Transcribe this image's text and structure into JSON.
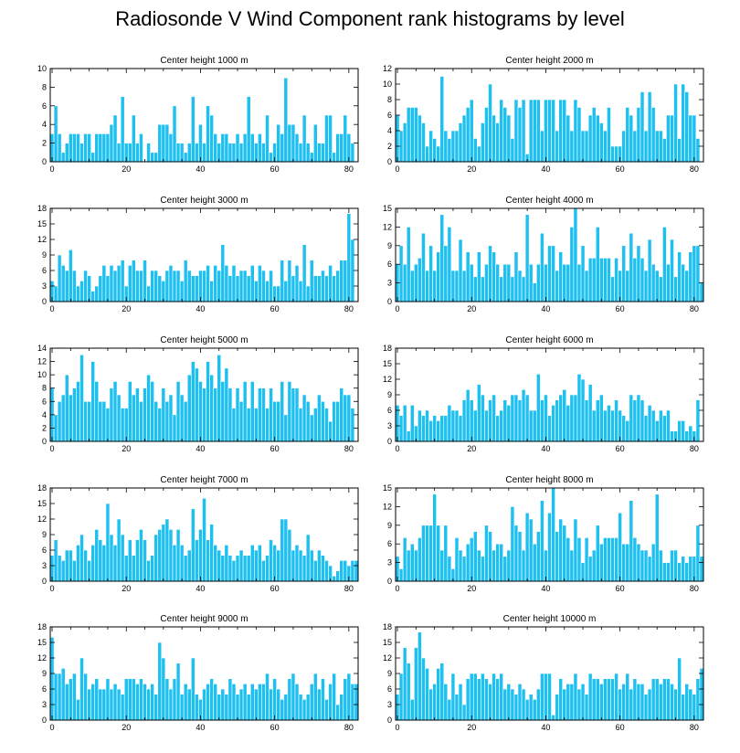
{
  "title": "Radiosonde V Wind Component rank histograms by level",
  "colors": {
    "bar": "#1ec0f0",
    "bar_edge": "#ffffff",
    "axis": "#000000"
  },
  "chart_data": [
    {
      "type": "bar",
      "title": "Center height 1000 m",
      "xlim": [
        -0.5,
        82.5
      ],
      "ylim": [
        0,
        10
      ],
      "xticks": [
        0,
        20,
        40,
        60,
        80
      ],
      "yticks": [
        0,
        2,
        4,
        6,
        8,
        10
      ],
      "values": [
        3,
        6,
        3,
        1,
        2,
        3,
        3,
        3,
        2,
        3,
        3,
        1,
        3,
        3,
        3,
        3,
        4,
        5,
        2,
        7,
        2,
        2,
        5,
        2,
        3,
        0,
        2,
        1,
        1,
        4,
        4,
        4,
        3,
        6,
        2,
        2,
        1,
        2,
        7,
        2,
        4,
        2,
        6,
        5,
        3,
        2,
        3,
        3,
        2,
        2,
        3,
        2,
        3,
        7,
        3,
        2,
        3,
        2,
        5,
        1,
        2,
        4,
        3,
        9,
        4,
        4,
        3,
        2,
        5,
        2,
        1,
        4,
        2,
        2,
        5,
        5,
        1,
        3,
        3,
        5,
        3,
        2,
        0
      ]
    },
    {
      "type": "bar",
      "title": "Center height 2000 m",
      "xlim": [
        -0.5,
        82.5
      ],
      "ylim": [
        0,
        12
      ],
      "xticks": [
        0,
        20,
        40,
        60,
        80
      ],
      "yticks": [
        0,
        2,
        4,
        6,
        8,
        10,
        12
      ],
      "values": [
        6,
        4,
        5,
        7,
        7,
        7,
        6,
        5,
        2,
        4,
        3,
        2,
        11,
        4,
        3,
        4,
        4,
        5,
        6,
        7,
        8,
        3,
        2,
        5,
        7,
        10,
        6,
        5,
        8,
        7,
        6,
        3,
        8,
        7,
        8,
        1,
        8,
        8,
        8,
        4,
        8,
        8,
        8,
        4,
        8,
        8,
        6,
        4,
        8,
        7,
        4,
        4,
        6,
        7,
        6,
        5,
        4,
        7,
        2,
        2,
        2,
        4,
        7,
        6,
        4,
        7,
        9,
        4,
        9,
        7,
        4,
        4,
        3,
        6,
        6,
        10,
        3,
        10,
        9,
        6,
        6,
        3,
        0
      ]
    },
    {
      "type": "bar",
      "title": "Center height 3000 m",
      "xlim": [
        -0.5,
        82.5
      ],
      "ylim": [
        0,
        18
      ],
      "xticks": [
        0,
        20,
        40,
        60,
        80
      ],
      "yticks": [
        0,
        3,
        6,
        9,
        12,
        15,
        18
      ],
      "values": [
        4,
        3,
        9,
        7,
        6,
        10,
        6,
        3,
        4,
        6,
        5,
        2,
        3,
        5,
        7,
        5,
        7,
        6,
        7,
        8,
        3,
        7,
        8,
        6,
        6,
        8,
        3,
        6,
        6,
        5,
        4,
        6,
        7,
        6,
        6,
        4,
        8,
        6,
        5,
        5,
        6,
        6,
        7,
        4,
        7,
        6,
        11,
        7,
        5,
        7,
        5,
        6,
        6,
        5,
        7,
        4,
        7,
        6,
        4,
        6,
        3,
        3,
        8,
        4,
        8,
        5,
        7,
        4,
        11,
        3,
        8,
        5,
        5,
        6,
        5,
        7,
        5,
        6,
        8,
        8,
        17,
        12,
        0
      ]
    },
    {
      "type": "bar",
      "title": "Center height 4000 m",
      "xlim": [
        -0.5,
        82.5
      ],
      "ylim": [
        0,
        15
      ],
      "xticks": [
        0,
        20,
        40,
        60,
        80
      ],
      "yticks": [
        0,
        3,
        6,
        9,
        12,
        15
      ],
      "values": [
        6,
        9,
        6,
        12,
        5,
        6,
        7,
        11,
        5,
        9,
        5,
        8,
        14,
        9,
        12,
        5,
        5,
        10,
        5,
        8,
        6,
        4,
        8,
        4,
        6,
        9,
        8,
        6,
        4,
        6,
        6,
        4,
        8,
        5,
        4,
        14,
        6,
        3,
        6,
        11,
        6,
        9,
        9,
        5,
        8,
        6,
        6,
        12,
        15,
        6,
        9,
        5,
        7,
        7,
        12,
        7,
        7,
        7,
        4,
        7,
        5,
        9,
        5,
        11,
        7,
        9,
        7,
        5,
        10,
        6,
        5,
        4,
        12,
        6,
        10,
        4,
        8,
        6,
        5,
        8,
        9,
        9,
        3
      ]
    },
    {
      "type": "bar",
      "title": "Center height 5000 m",
      "xlim": [
        -0.5,
        82.5
      ],
      "ylim": [
        0,
        14
      ],
      "xticks": [
        0,
        20,
        40,
        60,
        80
      ],
      "yticks": [
        0,
        2,
        4,
        6,
        8,
        10,
        12,
        14
      ],
      "values": [
        8,
        4,
        6,
        7,
        10,
        7,
        8,
        9,
        13,
        6,
        6,
        12,
        9,
        6,
        6,
        5,
        8,
        9,
        7,
        5,
        5,
        9,
        7,
        8,
        6,
        8,
        10,
        9,
        6,
        5,
        8,
        6,
        7,
        4,
        9,
        7,
        6,
        10,
        12,
        11,
        9,
        8,
        12,
        10,
        8,
        13,
        9,
        11,
        8,
        5,
        8,
        6,
        9,
        5,
        9,
        5,
        8,
        8,
        5,
        8,
        6,
        6,
        9,
        4,
        9,
        8,
        8,
        5,
        7,
        6,
        4,
        5,
        7,
        6,
        5,
        3,
        6,
        6,
        8,
        7,
        7,
        5,
        0
      ]
    },
    {
      "type": "bar",
      "title": "Center height 6000 m",
      "xlim": [
        -0.5,
        82.5
      ],
      "ylim": [
        0,
        18
      ],
      "xticks": [
        0,
        20,
        40,
        60,
        80
      ],
      "yticks": [
        0,
        3,
        6,
        9,
        12,
        15,
        18
      ],
      "values": [
        7,
        5,
        7,
        2,
        7,
        3,
        6,
        5,
        6,
        4,
        5,
        4,
        5,
        5,
        7,
        6,
        6,
        5,
        8,
        10,
        8,
        6,
        11,
        9,
        6,
        8,
        9,
        5,
        6,
        8,
        7,
        9,
        9,
        8,
        10,
        9,
        6,
        6,
        13,
        8,
        9,
        5,
        7,
        8,
        9,
        10,
        7,
        9,
        9,
        13,
        12,
        8,
        11,
        6,
        8,
        9,
        6,
        7,
        6,
        8,
        6,
        5,
        4,
        9,
        8,
        9,
        8,
        5,
        7,
        6,
        4,
        6,
        5,
        6,
        2,
        2,
        4,
        4,
        2,
        3,
        2,
        8,
        0
      ]
    },
    {
      "type": "bar",
      "title": "Center height 7000 m",
      "xlim": [
        -0.5,
        82.5
      ],
      "ylim": [
        0,
        18
      ],
      "xticks": [
        0,
        20,
        40,
        60,
        80
      ],
      "yticks": [
        0,
        3,
        6,
        9,
        12,
        15,
        18
      ],
      "values": [
        5,
        8,
        5,
        4,
        6,
        6,
        4,
        7,
        9,
        6,
        4,
        7,
        10,
        8,
        7,
        15,
        9,
        7,
        12,
        9,
        5,
        8,
        5,
        8,
        10,
        8,
        4,
        5,
        9,
        10,
        11,
        12,
        10,
        7,
        10,
        7,
        5,
        6,
        14,
        8,
        10,
        16,
        8,
        11,
        7,
        6,
        5,
        7,
        5,
        4,
        5,
        6,
        5,
        5,
        7,
        6,
        7,
        4,
        5,
        8,
        7,
        6,
        12,
        12,
        10,
        6,
        7,
        6,
        5,
        9,
        6,
        4,
        6,
        5,
        4,
        3,
        1,
        2,
        4,
        4,
        3,
        4,
        4
      ]
    },
    {
      "type": "bar",
      "title": "Center height 8000 m",
      "xlim": [
        -0.5,
        82.5
      ],
      "ylim": [
        0,
        15
      ],
      "xticks": [
        0,
        20,
        40,
        60,
        80
      ],
      "yticks": [
        0,
        3,
        6,
        9,
        12,
        15
      ],
      "values": [
        4,
        2,
        7,
        5,
        6,
        5,
        7,
        9,
        9,
        9,
        14,
        9,
        5,
        9,
        4,
        2,
        7,
        5,
        4,
        6,
        7,
        8,
        5,
        4,
        9,
        8,
        5,
        6,
        6,
        4,
        5,
        12,
        9,
        8,
        5,
        11,
        10,
        6,
        8,
        13,
        5,
        11,
        15,
        8,
        10,
        9,
        7,
        5,
        10,
        7,
        3,
        7,
        4,
        5,
        9,
        6,
        7,
        7,
        7,
        7,
        11,
        6,
        6,
        13,
        7,
        6,
        5,
        5,
        4,
        6,
        14,
        5,
        3,
        3,
        5,
        5,
        3,
        4,
        3,
        4,
        4,
        9,
        4
      ]
    },
    {
      "type": "bar",
      "title": "Center height 9000 m",
      "xlim": [
        -0.5,
        82.5
      ],
      "ylim": [
        0,
        18
      ],
      "xticks": [
        0,
        20,
        40,
        60,
        80
      ],
      "yticks": [
        0,
        3,
        6,
        9,
        12,
        15,
        18
      ],
      "values": [
        16,
        9,
        9,
        10,
        7,
        8,
        9,
        4,
        12,
        9,
        6,
        7,
        8,
        6,
        6,
        8,
        6,
        7,
        6,
        5,
        8,
        8,
        8,
        7,
        8,
        7,
        6,
        7,
        5,
        15,
        12,
        8,
        6,
        8,
        11,
        5,
        7,
        6,
        12,
        5,
        4,
        6,
        7,
        8,
        7,
        5,
        6,
        5,
        8,
        7,
        5,
        6,
        7,
        5,
        7,
        6,
        7,
        7,
        9,
        6,
        8,
        6,
        4,
        5,
        8,
        9,
        7,
        5,
        4,
        5,
        7,
        9,
        6,
        8,
        4,
        7,
        9,
        3,
        5,
        8,
        9,
        7,
        7
      ]
    },
    {
      "type": "bar",
      "title": "Center height 10000 m",
      "xlim": [
        -0.5,
        82.5
      ],
      "ylim": [
        0,
        18
      ],
      "xticks": [
        0,
        20,
        40,
        60,
        80
      ],
      "yticks": [
        0,
        3,
        6,
        9,
        12,
        15,
        18
      ],
      "values": [
        5,
        9,
        14,
        11,
        4,
        14,
        17,
        12,
        10,
        6,
        7,
        10,
        11,
        7,
        4,
        9,
        5,
        7,
        3,
        8,
        9,
        9,
        8,
        9,
        8,
        7,
        9,
        8,
        9,
        6,
        7,
        6,
        5,
        7,
        6,
        4,
        5,
        4,
        6,
        9,
        9,
        9,
        1,
        5,
        8,
        6,
        7,
        7,
        9,
        6,
        7,
        5,
        9,
        8,
        8,
        7,
        8,
        8,
        8,
        9,
        6,
        7,
        9,
        6,
        8,
        7,
        7,
        5,
        6,
        8,
        8,
        7,
        8,
        8,
        7,
        6,
        12,
        5,
        7,
        6,
        5,
        8,
        10
      ]
    }
  ]
}
